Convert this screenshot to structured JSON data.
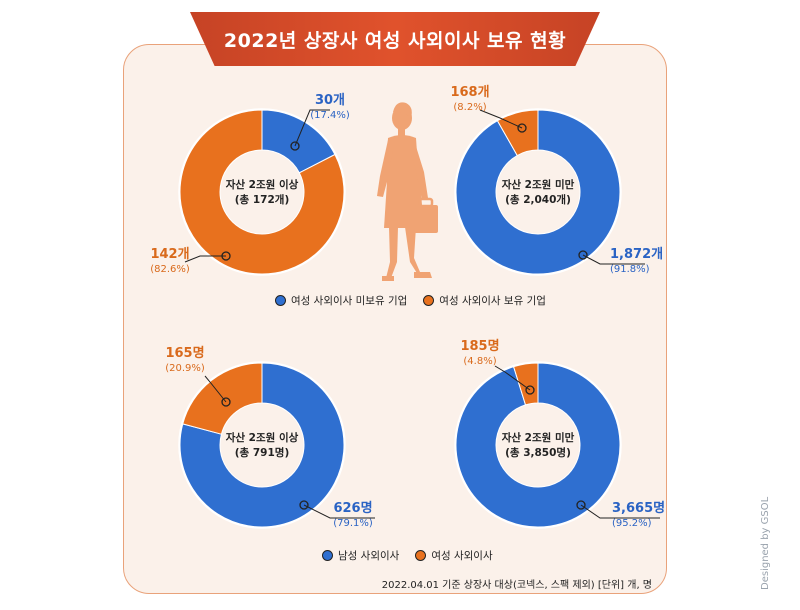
{
  "title": "2022년 상장사 여성 사외이사 보유 현황",
  "credit": "Designed by GSOL",
  "footnote": "2022.04.01 기준 상장사 대상(코넥스, 스팩 제외) [단위] 개, 명",
  "colors": {
    "blue": "#2f6fd0",
    "orange": "#e8711e",
    "blue_text": "#2a63c4",
    "orange_text": "#d96a1c"
  },
  "legends": {
    "top": [
      {
        "label": "여성 사외이사 미보유 기업",
        "color": "#2f6fd0"
      },
      {
        "label": "여성 사외이사 보유 기업",
        "color": "#e8711e"
      }
    ],
    "bottom": [
      {
        "label": "남성 사외이사",
        "color": "#2f6fd0"
      },
      {
        "label": "여성 사외이사",
        "color": "#e8711e"
      }
    ]
  },
  "icon": "businesswoman-silhouette-icon",
  "chart_data": [
    {
      "type": "pie",
      "center_label": [
        "자산 2조원 이상",
        "(총 172개)"
      ],
      "categories": [
        "여성 사외이사 미보유 기업",
        "여성 사외이사 보유 기업"
      ],
      "values": [
        30,
        142
      ],
      "percents": [
        17.4,
        82.6
      ],
      "value_labels": [
        "30개",
        "142개"
      ],
      "pct_labels": [
        "(17.4%)",
        "(82.6%)"
      ]
    },
    {
      "type": "pie",
      "center_label": [
        "자산 2조원 미만",
        "(총 2,040개)"
      ],
      "categories": [
        "여성 사외이사 미보유 기업",
        "여성 사외이사 보유 기업"
      ],
      "values": [
        1872,
        168
      ],
      "percents": [
        91.8,
        8.2
      ],
      "value_labels": [
        "1,872개",
        "168개"
      ],
      "pct_labels": [
        "(91.8%)",
        "(8.2%)"
      ]
    },
    {
      "type": "pie",
      "center_label": [
        "자산 2조원 이상",
        "(총 791명)"
      ],
      "categories": [
        "남성 사외이사",
        "여성 사외이사"
      ],
      "values": [
        626,
        165
      ],
      "percents": [
        79.1,
        20.9
      ],
      "value_labels": [
        "626명",
        "165명"
      ],
      "pct_labels": [
        "(79.1%)",
        "(20.9%)"
      ]
    },
    {
      "type": "pie",
      "center_label": [
        "자산 2조원 미만",
        "(총 3,850명)"
      ],
      "categories": [
        "남성 사외이사",
        "여성 사외이사"
      ],
      "values": [
        3665,
        185
      ],
      "percents": [
        95.2,
        4.8
      ],
      "value_labels": [
        "3,665명",
        "185명"
      ],
      "pct_labels": [
        "(95.2%)",
        "(4.8%)"
      ]
    }
  ]
}
